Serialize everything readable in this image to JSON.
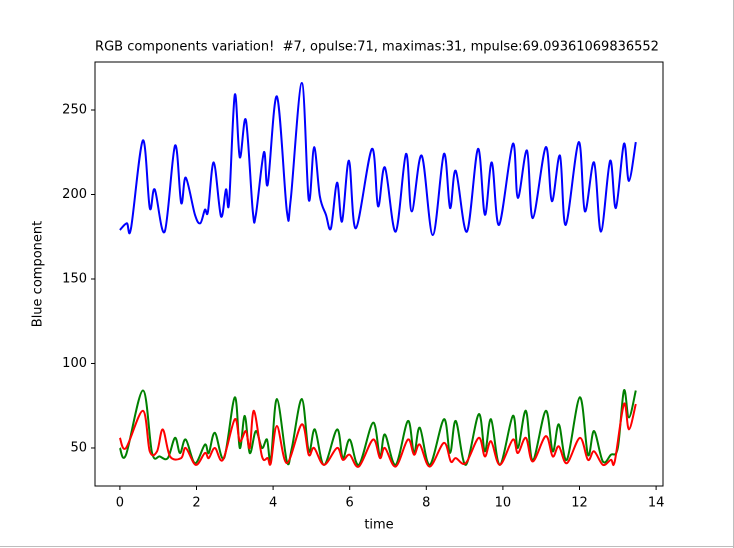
{
  "chart_data": {
    "type": "line",
    "title": "RGB components variation!  #7, opulse:71, maximas:31, mpulse:69.09361069836552",
    "x_label": "time",
    "y_label": "Blue component",
    "xlim": [
      -0.65,
      14.18
    ],
    "ylim": [
      27.5,
      278.4
    ],
    "xticks": [
      0,
      2,
      4,
      6,
      8,
      10,
      12,
      14
    ],
    "yticks": [
      50,
      100,
      150,
      200,
      250
    ],
    "grid": false,
    "series": [
      {
        "color": "#0000ff",
        "x": [
          0,
          0.18,
          0.29,
          0.6,
          0.78,
          0.91,
          1.17,
          1.44,
          1.6,
          1.72,
          1.96,
          2.1,
          2.22,
          2.3,
          2.45,
          2.64,
          2.77,
          2.85,
          3.0,
          3.13,
          3.29,
          3.47,
          3.55,
          3.76,
          3.86,
          4.1,
          4.36,
          4.46,
          4.75,
          4.93,
          5.07,
          5.22,
          5.38,
          5.51,
          5.67,
          5.8,
          5.98,
          6.16,
          6.58,
          6.74,
          6.92,
          7.2,
          7.47,
          7.62,
          7.88,
          8.17,
          8.46,
          8.62,
          8.77,
          9.06,
          9.35,
          9.53,
          9.71,
          9.9,
          10.26,
          10.39,
          10.63,
          10.78,
          11.12,
          11.28,
          11.49,
          11.64,
          11.98,
          12.14,
          12.38,
          12.56,
          12.8,
          12.95,
          13.16,
          13.29,
          13.47
        ],
        "values": [
          179,
          183,
          180,
          232,
          192,
          203,
          178,
          229,
          195,
          210,
          188,
          183,
          191,
          190,
          219,
          187,
          203,
          195,
          259,
          222,
          244,
          190,
          188,
          225,
          206,
          258,
          190,
          197,
          266,
          197,
          228,
          199,
          188,
          180,
          207,
          184,
          220,
          180,
          227,
          193,
          216,
          178,
          224,
          190,
          223,
          176,
          224,
          192,
          214,
          178,
          227,
          188,
          219,
          182,
          230,
          198,
          226,
          186,
          228,
          196,
          223,
          182,
          231,
          190,
          219,
          178,
          220,
          192,
          230,
          208,
          231
        ]
      },
      {
        "color": "#008000",
        "x": [
          0,
          0.16,
          0.6,
          0.84,
          1.04,
          1.25,
          1.44,
          1.57,
          1.72,
          1.96,
          2.22,
          2.32,
          2.48,
          2.72,
          3.0,
          3.13,
          3.26,
          3.39,
          3.55,
          3.71,
          3.84,
          3.94,
          4.1,
          4.36,
          4.49,
          4.75,
          4.93,
          5.09,
          5.33,
          5.67,
          5.82,
          6.0,
          6.24,
          6.61,
          6.79,
          6.92,
          7.2,
          7.52,
          7.68,
          7.83,
          8.09,
          8.46,
          8.62,
          8.77,
          9.03,
          9.37,
          9.53,
          9.69,
          9.92,
          10.26,
          10.39,
          10.6,
          10.78,
          11.12,
          11.3,
          11.46,
          11.67,
          12.01,
          12.22,
          12.38,
          12.61,
          12.82,
          13.0,
          13.16,
          13.29,
          13.47
        ],
        "values": [
          50,
          46,
          84,
          47,
          45,
          44,
          56,
          47,
          55,
          41,
          52,
          47,
          59,
          44,
          80,
          50,
          69,
          47,
          60,
          50,
          55,
          43,
          79,
          42,
          50,
          79,
          48,
          61,
          40,
          61,
          44,
          55,
          40,
          65,
          45,
          58,
          40,
          66,
          47,
          62,
          40,
          67,
          47,
          66,
          40,
          70,
          48,
          67,
          40,
          69,
          50,
          72,
          43,
          72,
          48,
          64,
          43,
          80,
          46,
          60,
          42,
          46,
          50,
          84,
          68,
          84
        ]
      },
      {
        "color": "#ff0000",
        "x": [
          0,
          0.16,
          0.6,
          0.78,
          0.97,
          1.12,
          1.31,
          1.6,
          1.72,
          1.98,
          2.22,
          2.32,
          2.48,
          2.69,
          3.0,
          3.13,
          3.29,
          3.39,
          3.5,
          3.71,
          3.86,
          3.94,
          4.1,
          4.36,
          4.75,
          4.93,
          5.07,
          5.33,
          5.67,
          5.82,
          6.0,
          6.24,
          6.61,
          6.79,
          6.92,
          7.2,
          7.52,
          7.68,
          7.83,
          8.09,
          8.46,
          8.64,
          8.77,
          9.03,
          9.37,
          9.53,
          9.69,
          9.92,
          10.26,
          10.39,
          10.6,
          10.78,
          11.12,
          11.3,
          11.46,
          11.67,
          12.01,
          12.22,
          12.38,
          12.61,
          12.82,
          12.92,
          13.16,
          13.29,
          13.47
        ],
        "values": [
          56,
          50,
          72,
          48,
          48,
          61,
          45,
          44,
          50,
          40,
          47,
          44,
          50,
          43,
          67,
          54,
          60,
          50,
          72,
          45,
          44,
          41,
          63,
          41,
          64,
          46,
          50,
          40,
          50,
          43,
          46,
          39,
          55,
          44,
          50,
          39,
          55,
          46,
          52,
          39,
          53,
          42,
          44,
          41,
          56,
          45,
          54,
          40,
          55,
          47,
          56,
          42,
          57,
          45,
          51,
          41,
          56,
          43,
          48,
          40,
          43,
          42,
          76,
          61,
          76
        ]
      }
    ]
  }
}
